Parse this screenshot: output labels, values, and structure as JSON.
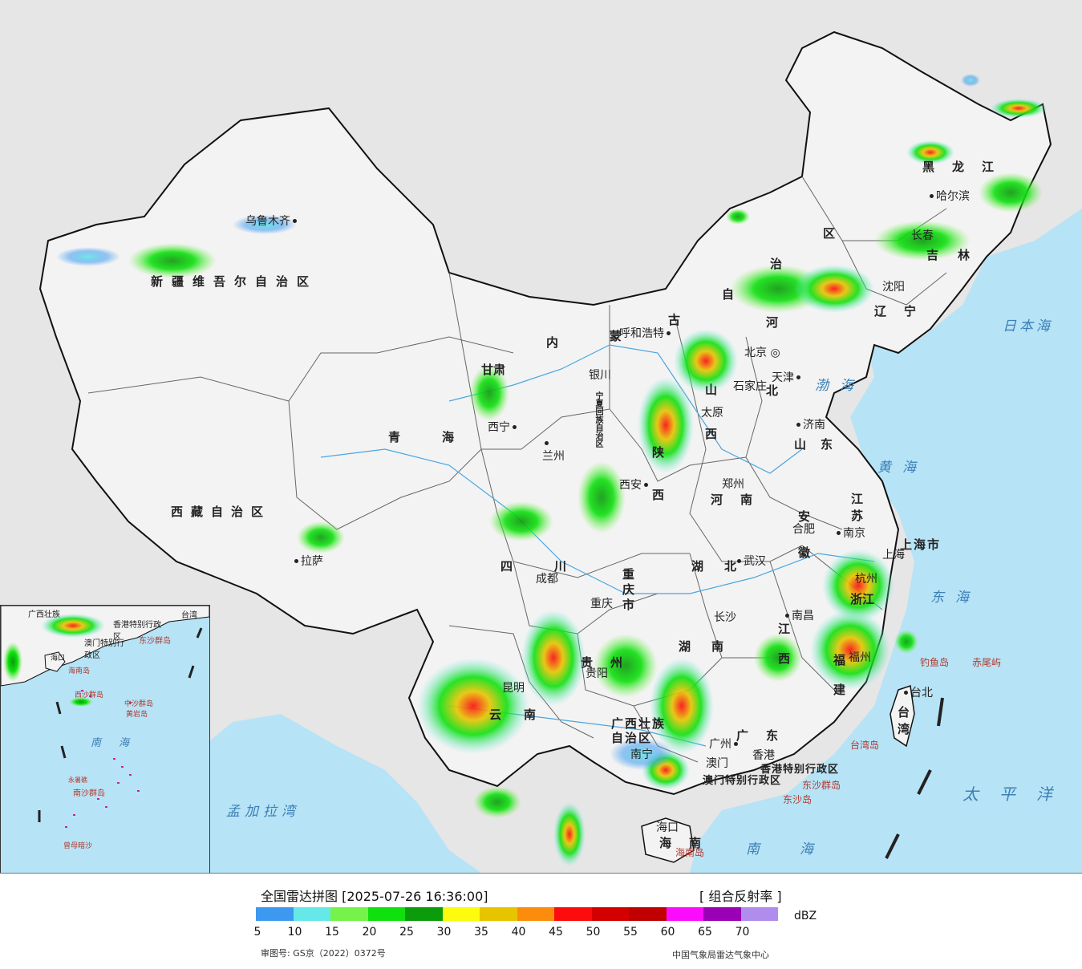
{
  "map": {
    "country_labels": {
      "xinjiang": "新疆维吾尔自治区",
      "tibet": "西藏自治区",
      "qinghai": "青海",
      "gansu": "甘肃",
      "neimenggu_nei": "内",
      "neimenggu_meng": "蒙",
      "neimenggu_gu": "古",
      "neimenggu_zi": "自",
      "neimenggu_zhi": "治",
      "neimenggu_qu": "区",
      "heilongjiang": "黑龙江",
      "jilin": "吉林",
      "liaoning": "辽宁",
      "hebei": "河北",
      "shanxi": "山西",
      "shaanxi": "陕西",
      "ningxia": "宁夏回族自治区",
      "shandong": "山东",
      "henan": "河南",
      "jiangsu": "江苏",
      "anhui": "安徽",
      "hubei": "湖北",
      "sichuan": "四川",
      "chongqing": "重庆市",
      "zhejiang": "浙江",
      "jiangxi": "江西",
      "hunan": "湖南",
      "guizhou": "贵州",
      "yunnan": "云南",
      "guangxi": "广西壮族自治区",
      "guangdong": "广东",
      "fujian": "福建",
      "taiwan": "台湾",
      "hainan": "海南",
      "shanghai": "上海市",
      "hongkong": "香港特别行政区",
      "macau": "澳门特别行政区"
    },
    "cities": {
      "urumqi": "乌鲁木齐",
      "lhasa": "拉萨",
      "xining": "西宁",
      "lanzhou": "兰州",
      "yinchuan": "银川",
      "hohhot": "呼和浩特",
      "beijing": "北京",
      "tianjin": "天津",
      "shijiazhuang": "石家庄",
      "taiyuan": "太原",
      "jinan": "济南",
      "xian": "西安",
      "zhengzhou": "郑州",
      "hefei": "合肥",
      "nanjing": "南京",
      "shanghai_city": "上海",
      "hangzhou": "杭州",
      "wuhan": "武汉",
      "chengdu": "成都",
      "chongqing_city": "重庆",
      "changsha": "长沙",
      "nanchang": "南昌",
      "guiyang": "贵阳",
      "kunming": "昆明",
      "nanning": "南宁",
      "guangzhou": "广州",
      "macau_city": "澳门",
      "hongkong_city": "香港",
      "fuzhou": "福州",
      "taipei": "台北",
      "haikou": "海口",
      "harbin": "哈尔滨",
      "changchun": "长春",
      "shenyang": "沈阳"
    },
    "seas": {
      "japan_sea": "日本海",
      "bohai": "渤海",
      "yellow_sea": "黄海",
      "east_sea": "东海",
      "south_sea": "南海",
      "pacific": "太平洋",
      "bengal": "孟加拉湾"
    },
    "islands": {
      "diaoyu": "钓鱼岛",
      "chiwei": "赤尾屿",
      "dongsha_islands": "东沙群岛",
      "dongsha_island": "东沙岛",
      "hainan_island": "海南岛",
      "taiwan_island": "台湾岛"
    },
    "inset_labels": {
      "guangxi": "广西壮族",
      "taiwan": "台湾",
      "hk": "香港特别行政区",
      "macau": "澳门特别行政区",
      "dongsha": "东沙群岛",
      "haikou": "海口",
      "hainan": "海南岛",
      "xisha": "西沙群岛",
      "zhongsha": "中沙群岛",
      "huangyan": "黄岩岛",
      "nanhai": "南海",
      "nansha": "南沙群岛",
      "yongshu": "永暑礁",
      "zengmu": "曾母暗沙"
    }
  },
  "legend": {
    "title": "全国雷达拼图 [2025-07-26 16:36:00]",
    "product": "[ 组合反射率 ]",
    "unit": "dBZ",
    "colors": [
      "#3d99f0",
      "#66e8e8",
      "#75f34a",
      "#0fe10f",
      "#0b9b0b",
      "#fcfc0c",
      "#e8c400",
      "#fc8d0c",
      "#fc0c0c",
      "#d40000",
      "#c00000",
      "#fc0cfc",
      "#9a00b4",
      "#b08cec"
    ],
    "ticks": [
      "5",
      "10",
      "15",
      "20",
      "25",
      "30",
      "35",
      "40",
      "45",
      "50",
      "55",
      "60",
      "65",
      "70"
    ],
    "approval": "审图号: GS京（2022）0372号",
    "agency": "中国气象局雷达气象中心"
  }
}
